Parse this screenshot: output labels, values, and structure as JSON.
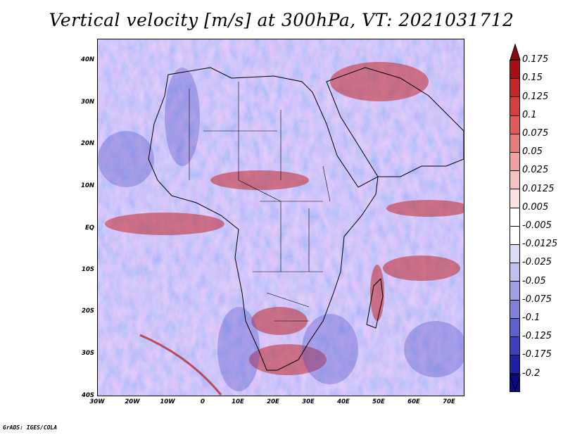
{
  "title": "Vertical velocity [m/s] at 300hPa, VT: 2021031712",
  "map": {
    "region": "Africa and Arabian Peninsula",
    "lat_labels": [
      "40N",
      "30N",
      "20N",
      "10N",
      "EQ",
      "10S",
      "20S",
      "30S",
      "40S"
    ],
    "lon_labels": [
      "30W",
      "20W",
      "10W",
      "0",
      "10E",
      "20E",
      "30E",
      "40E",
      "50E",
      "60E",
      "70E"
    ],
    "lat_range": [
      -40,
      45
    ],
    "lon_range": [
      -30,
      75
    ]
  },
  "colorbar": {
    "levels": [
      "0.175",
      "0.15",
      "0.125",
      "0.1",
      "0.075",
      "0.05",
      "0.025",
      "0.0125",
      "0.005",
      "-0.005",
      "-0.0125",
      "-0.025",
      "-0.05",
      "-0.075",
      "-0.1",
      "-0.125",
      "-0.175",
      "-0.2"
    ],
    "colors": [
      "#a50f15",
      "#c0282a",
      "#d44040",
      "#e05a5a",
      "#e87c7c",
      "#efa0a0",
      "#f5c2c2",
      "#fae0e0",
      "#ffffff",
      "#ffffff",
      "#dcdcf5",
      "#c0c0ee",
      "#a0a0e4",
      "#8080da",
      "#6060cc",
      "#4040bb",
      "#2020a5",
      "#0a0a8a"
    ]
  },
  "footer": "GrADS: IGES/COLA"
}
